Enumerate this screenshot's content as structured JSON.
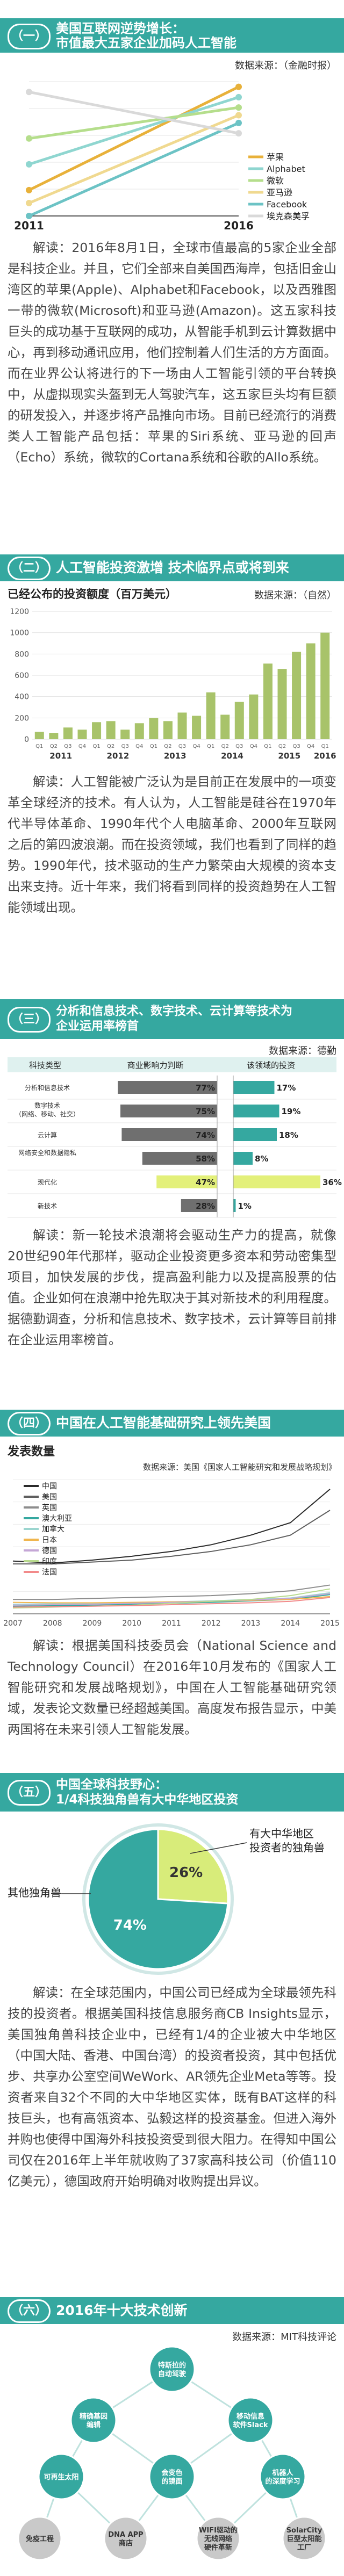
{
  "sections": [
    {
      "num": "（一）",
      "title": "美国互联网逆势增长：\n市值最大五家企业加码人工智能",
      "source": "数据来源：（金融时报）",
      "paragraph": "解读：2016年8月1日，全球市值最高的5家企业全部是科技企业。并且，它们全部来自美国西海岸，包括旧金山湾区的苹果(Apple)、Alphabet和Facebook，以及西雅图一带的微软(Microsoft)和亚马逊(Amazon)。这五家科技巨头的成功基于互联网的成功，从智能手机到云计算数据中心，再到移动通讯应用，他们控制着人们生活的方方面面。而在业界公认将进行的下一场由人工智能引领的平台转换中，从虚拟现实头盔到无人驾驶汽车，这五家巨头均有巨额的研发投入，并逐步将产品推向市场。目前已经流行的消费类人工智能产品包括：苹果的Siri系统、亚马逊的回声（Echo）系统，微软的Cortana系统和谷歌的Allo系统。"
    },
    {
      "num": "（二）",
      "title": "人工智能投资激增 技术临界点或将到来",
      "subtitle": "已经公布的投资额度（百万美元）",
      "source": "数据来源：（自然）",
      "paragraph": "解读：人工智能被广泛认为是目前正在发展中的一项变革全球经济的技术。有人认为，人工智能是硅谷在1970年代半导体革命、1990年代个人电脑革命、2000年互联网之后的第四波浪潮。而在投资领域，我们也看到了同样的趋势。1990年代，技术驱动的生产力繁荣由大规模的资本支出来支持。近十年来，我们将看到同样的投资趋势在人工智能领域出现。"
    },
    {
      "num": "（三）",
      "title": "分析和信息技术、数字技术、云计算等技术为\n企业运用率榜首",
      "source": "数据来源：德勤",
      "paragraph": "解读：新一轮技术浪潮将会驱动生产力的提高，就像20世纪90年代那样，驱动企业投资更多资本和劳动密集型项目，加快发展的步伐，提高盈利能力以及提高股票的估值。企业如何在浪潮中抢先取决于其对新技术的利用程度。据德勤调查，分析和信息技术、数字技术，云计算等目前排在企业运用率榜首。"
    },
    {
      "num": "（四）",
      "title": "中国在人工智能基础研究上领先美国",
      "subtitle": "发表数量",
      "source": "数据来源：美国《国家人工智能研究和发展战略规划》",
      "paragraph": "解读：根据美国科技委员会（National Science and Technology Council）在2016年10月发布的《国家人工智能研究和发展战略规划》，中国在人工智能基础研究领域，发表论文数量已经超越美国。高度发布报告显示，中美两国将在未来引领人工智能发展。"
    },
    {
      "num": "（五）",
      "title": "中国全球科技野心：\n1/4科技独角兽有大中华地区投资",
      "paragraph": "解读：在全球范围内，中国公司已经成为全球最领先科技的投资者。根据美国科技信息服务商CB Insights显示，美国独角兽科技企业中，已经有1/4的企业被大中华地区（中国大陆、香港、中国台湾）的投资者投资，其中包括优步、共享办公室空间WeWork、AR领先企业Meta等等。投资者来自32个不同的大中华地区实体，既有BAT这样的科技巨头，也有高瓴资本、弘毅这样的投资基金。但进入海外并购也使得中国海外科技投资受到很大阻力。在得知中国公司仅在2016年上半年就收购了37家高科技公司（价值110亿美元），德国政府开始明确对收购提出异议。"
    },
    {
      "num": "（六）",
      "title": "2016年十大技术创新",
      "source": "数据来源：MIT科技评论"
    }
  ],
  "chart_data": [
    {
      "type": "line",
      "x": [
        "2011",
        "2016"
      ],
      "series": [
        {
          "name": "苹果",
          "values": [
            1,
            5
          ],
          "color": "#e8b13a"
        },
        {
          "name": "Alphabet",
          "values": [
            2,
            4.6
          ],
          "color": "#8fd6d0"
        },
        {
          "name": "微软",
          "values": [
            3,
            4.2
          ],
          "color": "#b5de8c"
        },
        {
          "name": "亚马逊",
          "values": [
            0.5,
            3.9
          ],
          "color": "#f0d990"
        },
        {
          "name": "Facebook",
          "values": [
            0,
            3.6
          ],
          "color": "#6cc3c5"
        },
        {
          "name": "埃克森美孚",
          "values": [
            4.8,
            3.2
          ],
          "color": "#d9d9d9"
        }
      ]
    },
    {
      "type": "bar",
      "categories": [
        "2011 Q1",
        "Q2",
        "Q3",
        "Q4",
        "2012 Q1",
        "Q2",
        "Q3",
        "Q4",
        "2013 Q1",
        "Q2",
        "Q3",
        "Q4",
        "2014 Q1",
        "Q2",
        "Q3",
        "Q4",
        "2015 Q1",
        "Q2",
        "Q3",
        "Q4",
        "2016 Q1"
      ],
      "x_labels": [
        "2011",
        "2012",
        "2013",
        "2014",
        "2015",
        "2016",
        "Q1",
        "Q2",
        "Q3",
        "Q4",
        "Q1",
        "Q2",
        "Q3",
        "Q4",
        "Q1",
        "Q2",
        "Q3",
        "Q4",
        "Q1",
        "Q2",
        "Q3",
        "Q4",
        "Q1",
        "Q2",
        "Q3",
        "Q4",
        "Q1"
      ],
      "values": [
        70,
        60,
        110,
        90,
        160,
        170,
        90,
        150,
        200,
        170,
        250,
        220,
        440,
        230,
        350,
        420,
        710,
        660,
        820,
        900,
        1000
      ],
      "ylim": [
        0,
        1200
      ],
      "yticks": [
        0,
        200,
        400,
        600,
        800,
        1000,
        1200
      ]
    },
    {
      "type": "bar",
      "header": [
        "科技类型",
        "商业影响力判断",
        "该领域的投资"
      ],
      "categories": [
        "分析和信息技术",
        "数字技术（网络、移动、社交）",
        "云计算",
        "网络安全和数据隐私",
        "现代化",
        "新技术"
      ],
      "impact": [
        77,
        75,
        74,
        58,
        47,
        28
      ],
      "investment": [
        17,
        19,
        18,
        8,
        36,
        1
      ],
      "impact_labels": [
        "77%",
        "75%",
        "74%",
        "58%",
        "47%",
        "28%"
      ],
      "investment_labels": [
        "17%",
        "19%",
        "18%",
        "8%",
        "36%",
        "1%"
      ]
    },
    {
      "type": "line",
      "x": [
        "2007",
        "2008",
        "2009",
        "2010",
        "2011",
        "2012",
        "2013",
        "2014",
        "2015"
      ],
      "series": [
        {
          "name": "中国",
          "values": [
            550,
            530,
            560,
            600,
            650,
            720,
            820,
            950,
            1300
          ],
          "color": "#2a2a2a"
        },
        {
          "name": "美国",
          "values": [
            520,
            520,
            540,
            560,
            600,
            650,
            720,
            820,
            1080
          ],
          "color": "#5f5f5f"
        },
        {
          "name": "英国",
          "values": [
            150,
            150,
            160,
            170,
            180,
            190,
            210,
            240,
            300
          ],
          "color": "#8d8d8d"
        },
        {
          "name": "澳大利亚",
          "values": [
            80,
            85,
            90,
            100,
            110,
            120,
            135,
            150,
            200
          ],
          "color": "#35a8a0"
        },
        {
          "name": "加拿大",
          "values": [
            100,
            105,
            110,
            115,
            125,
            135,
            150,
            165,
            220
          ],
          "color": "#9bd5cf"
        },
        {
          "name": "日本",
          "values": [
            120,
            115,
            115,
            120,
            125,
            130,
            140,
            150,
            180
          ],
          "color": "#f0b64e"
        },
        {
          "name": "德国",
          "values": [
            90,
            95,
            100,
            110,
            120,
            130,
            145,
            160,
            210
          ],
          "color": "#c5a7d6"
        },
        {
          "name": "印度",
          "values": [
            60,
            70,
            80,
            90,
            110,
            130,
            150,
            190,
            260
          ],
          "color": "#b7d98d"
        },
        {
          "name": "法国",
          "values": [
            70,
            75,
            80,
            85,
            95,
            105,
            115,
            130,
            170
          ],
          "color": "#f28a8a"
        }
      ],
      "ylim": [
        0,
        1400
      ]
    },
    {
      "type": "pie",
      "categories": [
        "有大中华地区投资者的独角兽",
        "其他独角兽"
      ],
      "values": [
        26,
        74
      ],
      "labels": [
        "26%",
        "74%"
      ]
    }
  ],
  "tech_innovations": {
    "items": [
      {
        "label": "特斯拉的\n自动驾驶",
        "icon": "car-icon"
      },
      {
        "label": "精确基因\n编辑",
        "icon": "dna-icon"
      },
      {
        "label": "移动信息\n软件Slack",
        "icon": "chat-icon"
      },
      {
        "label": "可再生太阳",
        "icon": "sun-icon"
      },
      {
        "label": "会变色\n的镜面",
        "icon": "mirror-icon"
      },
      {
        "label": "机器人\n的深度学习",
        "icon": "robot-icon"
      },
      {
        "label": "免疫工程",
        "icon": "shield-icon"
      },
      {
        "label": "DNA APP\n商店",
        "icon": "dna-store-icon"
      },
      {
        "label": "WIFI驱动的\n无线网络\n硬件革新",
        "icon": "wifi-icon"
      },
      {
        "label": "SolarCity\n巨型太阳能\n工厂",
        "icon": "factory-icon"
      }
    ],
    "colors": {
      "teal": "#35a8a0",
      "gray": "#c9c9c9",
      "dark": "#7a7a7a"
    }
  },
  "colors": {
    "accent": "#35a8a0",
    "bar": "#a8c36a",
    "light_teal": "#dff1ef"
  }
}
